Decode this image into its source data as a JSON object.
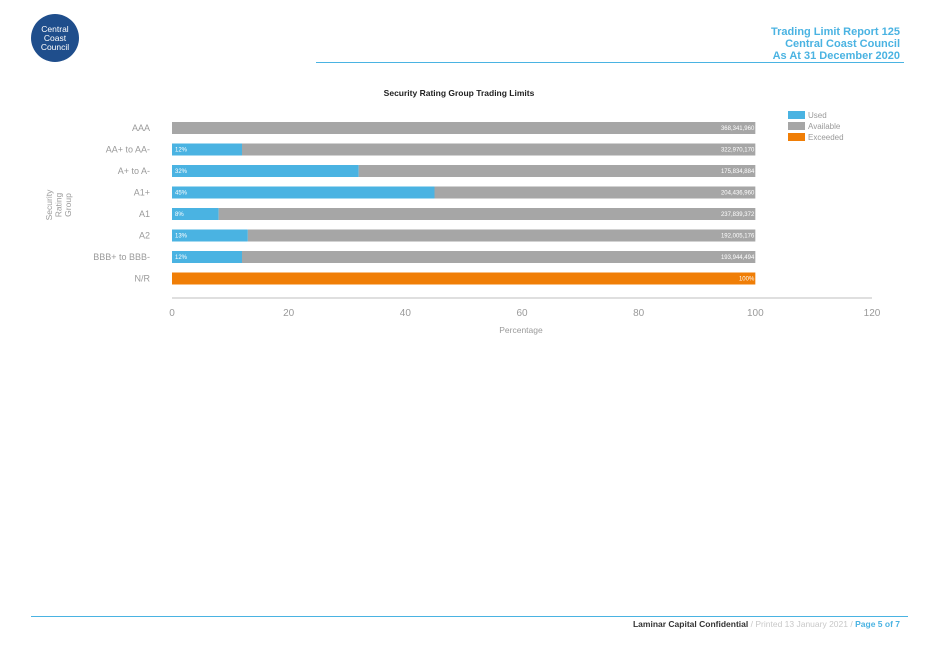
{
  "logo": {
    "line1": "Central",
    "line2": "Coast",
    "line3": "Council"
  },
  "header": {
    "line1": "Trading Limit Report 125",
    "line2": "Central Coast Council",
    "line3": "As At 31 December 2020"
  },
  "footer": {
    "confidential": "Laminar Capital Confidential",
    "separator": "/",
    "printed": "Printed 13 January 2021",
    "page": "Page 5 of 7"
  },
  "chart_data": {
    "type": "bar",
    "orientation": "horizontal",
    "stacked": true,
    "title": "Security Rating Group Trading Limits",
    "xlabel": "Percentage",
    "ylabel": "Security Rating Group",
    "xlim": [
      0,
      120
    ],
    "xticks": [
      0,
      20,
      40,
      60,
      80,
      100,
      120
    ],
    "grid": false,
    "legend_position": "top-right",
    "categories": [
      "AAA",
      "AA+ to AA-",
      "A+ to A-",
      "A1+",
      "A1",
      "A2",
      "BBB+ to BBB-",
      "N/R"
    ],
    "series": [
      {
        "name": "Used",
        "color": "#4ab3e2",
        "values": [
          0,
          12,
          32,
          45,
          8,
          13,
          12,
          0
        ],
        "labels": [
          "",
          "12%",
          "32%",
          "45%",
          "8%",
          "13%",
          "12%",
          ""
        ]
      },
      {
        "name": "Available",
        "color": "#a6a6a6",
        "values": [
          100,
          88,
          68,
          55,
          92,
          87,
          88,
          0
        ],
        "labels": [
          "368,341,960",
          "322,970,170",
          "175,834,884",
          "204,436,960",
          "237,839,372",
          "192,005,176",
          "193,944,494",
          ""
        ]
      },
      {
        "name": "Exceeded",
        "color": "#f07e06",
        "values": [
          0,
          0,
          0,
          0,
          0,
          0,
          0,
          100
        ],
        "labels": [
          "",
          "",
          "",
          "",
          "",
          "",
          "",
          "100%"
        ]
      }
    ]
  }
}
